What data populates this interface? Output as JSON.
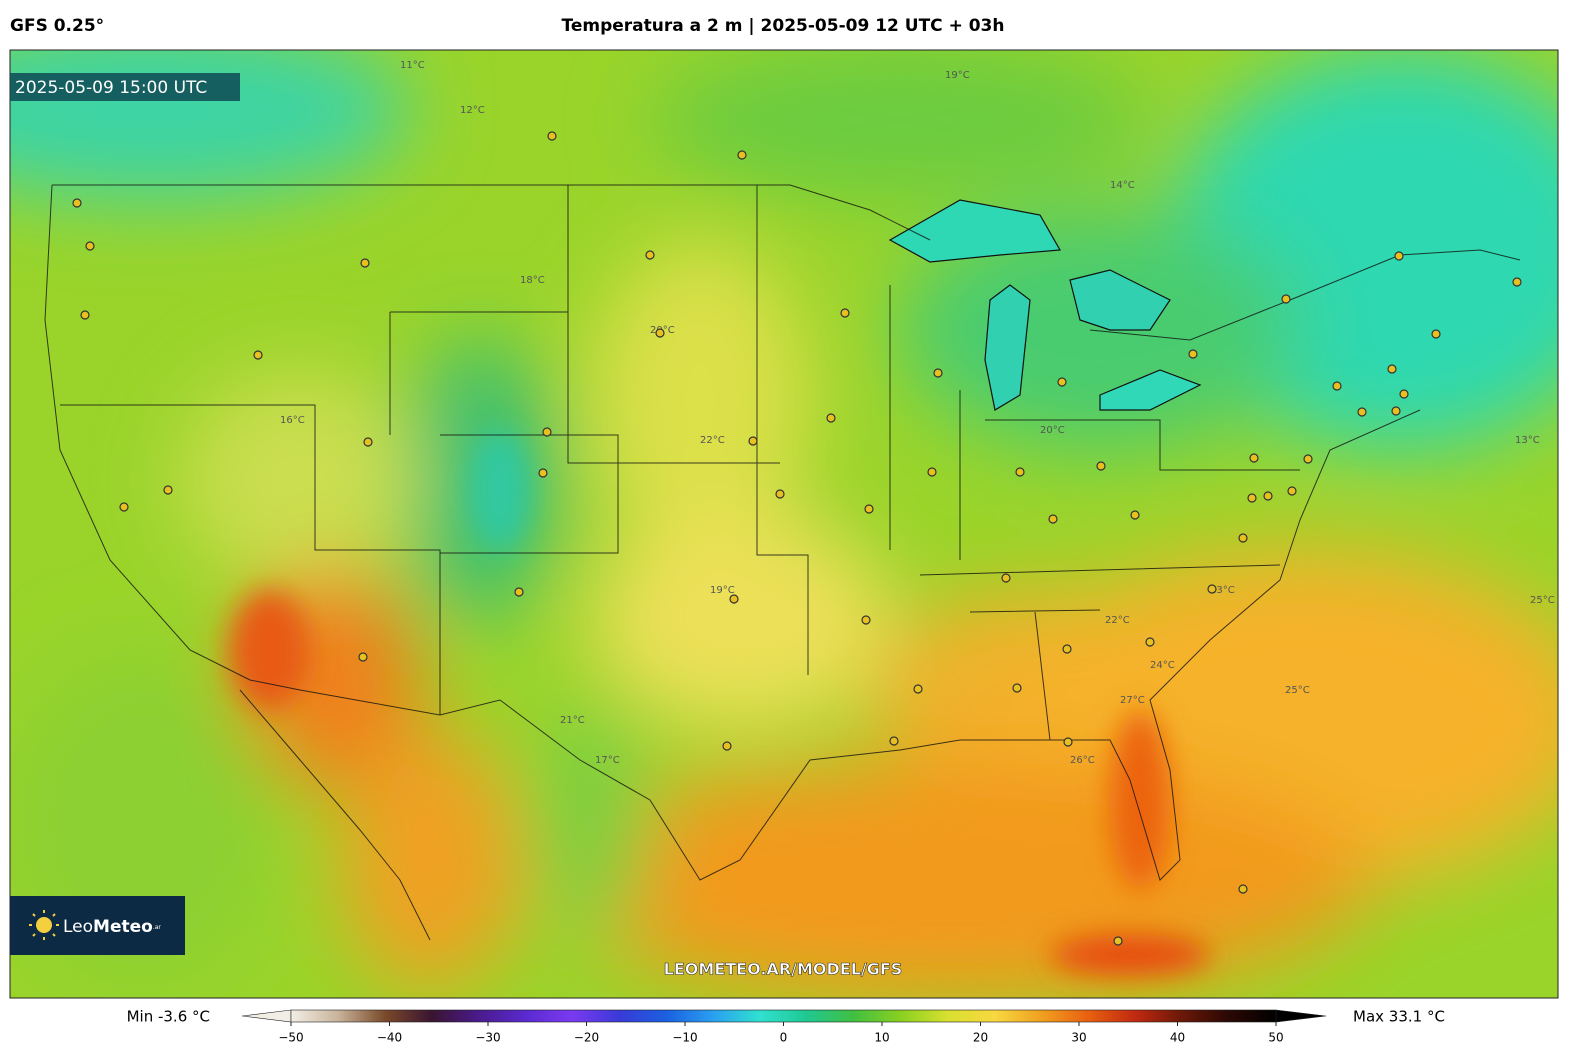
{
  "header": {
    "model": "GFS 0.25°",
    "title": "Temperatura a 2 m | 2025-05-09 12 UTC + 03h"
  },
  "map": {
    "valid_time": "2025-05-09 15:00 UTC",
    "watermark": "LEOMETEO.AR/MODEL/GFS",
    "logo": {
      "light": "Leo",
      "bold": "Meteo",
      "suffix": ".ar"
    },
    "contour_labels": [
      "11°C",
      "12°C",
      "19°C",
      "14°C",
      "18°C",
      "20°C",
      "22°C",
      "16°C",
      "21°C",
      "23°C",
      "24°C",
      "26°C",
      "25°C",
      "17°C",
      "13°C",
      "20°C",
      "19°C",
      "27°C",
      "22°C",
      "25°C"
    ]
  },
  "colorbar": {
    "min_label": "Min -3.6 °C",
    "max_label": "Max 33.1 °C",
    "lim": [
      -50,
      50
    ],
    "ticks": [
      {
        "value": -50,
        "label": "−50"
      },
      {
        "value": -40,
        "label": "−40"
      },
      {
        "value": -30,
        "label": "−30"
      },
      {
        "value": -20,
        "label": "−20"
      },
      {
        "value": -10,
        "label": "−10"
      },
      0,
      10,
      20,
      30,
      40,
      50
    ],
    "colors": [
      "#f2eee6",
      "#c9b49a",
      "#7a4a2a",
      "#3a1430",
      "#4a1a8c",
      "#5a2ad0",
      "#7a3af0",
      "#3a3ad8",
      "#1a60e0",
      "#2aa0f0",
      "#30e0d0",
      "#20c890",
      "#40c040",
      "#8ad020",
      "#d8e030",
      "#f8d840",
      "#f0a020",
      "#e86010",
      "#c02a10",
      "#6a1808",
      "#2a0804",
      "#000000"
    ]
  }
}
